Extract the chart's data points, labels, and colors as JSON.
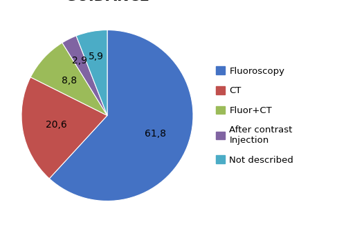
{
  "labels": [
    "Fluoroscopy",
    "CT",
    "Fluor+CT",
    "After contrast\nInjection",
    "Not described"
  ],
  "values": [
    61.8,
    20.6,
    8.8,
    2.9,
    5.9
  ],
  "autopct_labels": [
    "61,8",
    "20,6",
    "8,8",
    "2,9",
    "5,9"
  ],
  "colors": [
    "#4472C4",
    "#C0504D",
    "#9BBB59",
    "#8064A2",
    "#4BACC6"
  ],
  "background_color": "#ffffff",
  "title_fontsize": 15,
  "title_fontweight": "bold",
  "startangle": 90,
  "legend_fontsize": 9.5
}
